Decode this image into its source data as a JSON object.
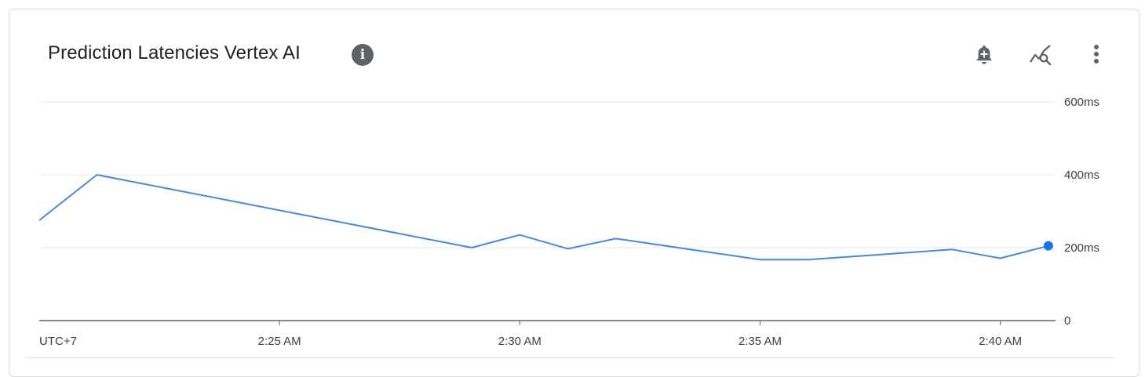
{
  "widget": {
    "title": "Prediction Latencies Vertex AI",
    "icons": [
      "info-icon",
      "add-alert-icon",
      "explore-metrics-icon",
      "more-vert-icon"
    ]
  },
  "chart_data": {
    "type": "line",
    "title": "Prediction Latencies Vertex AI",
    "xlabel": "",
    "ylabel": "",
    "timezone_label": "UTC+7",
    "x_tick_labels": [
      "2:25 AM",
      "2:30 AM",
      "2:35 AM",
      "2:40 AM"
    ],
    "x_ticks_minutes": [
      25,
      30,
      35,
      40
    ],
    "y_tick_labels": [
      "0",
      "200ms",
      "400ms",
      "600ms"
    ],
    "y_ticks": [
      0,
      200,
      400,
      600
    ],
    "xlim_minutes": [
      20,
      41.1
    ],
    "ylim": [
      0,
      600
    ],
    "grid": true,
    "legend": "none",
    "colors": {
      "line": "#4a86e0",
      "last_point": "#1a73e8",
      "grid": "#e8eaed",
      "axis": "#5f6368"
    },
    "series": [
      {
        "x_minutes": [
          20,
          21.2,
          29,
          30,
          31,
          32,
          35,
          36,
          39,
          40,
          41
        ],
        "values": [
          275,
          400,
          200,
          235,
          197,
          225,
          167,
          167,
          195,
          171,
          205
        ]
      }
    ]
  }
}
